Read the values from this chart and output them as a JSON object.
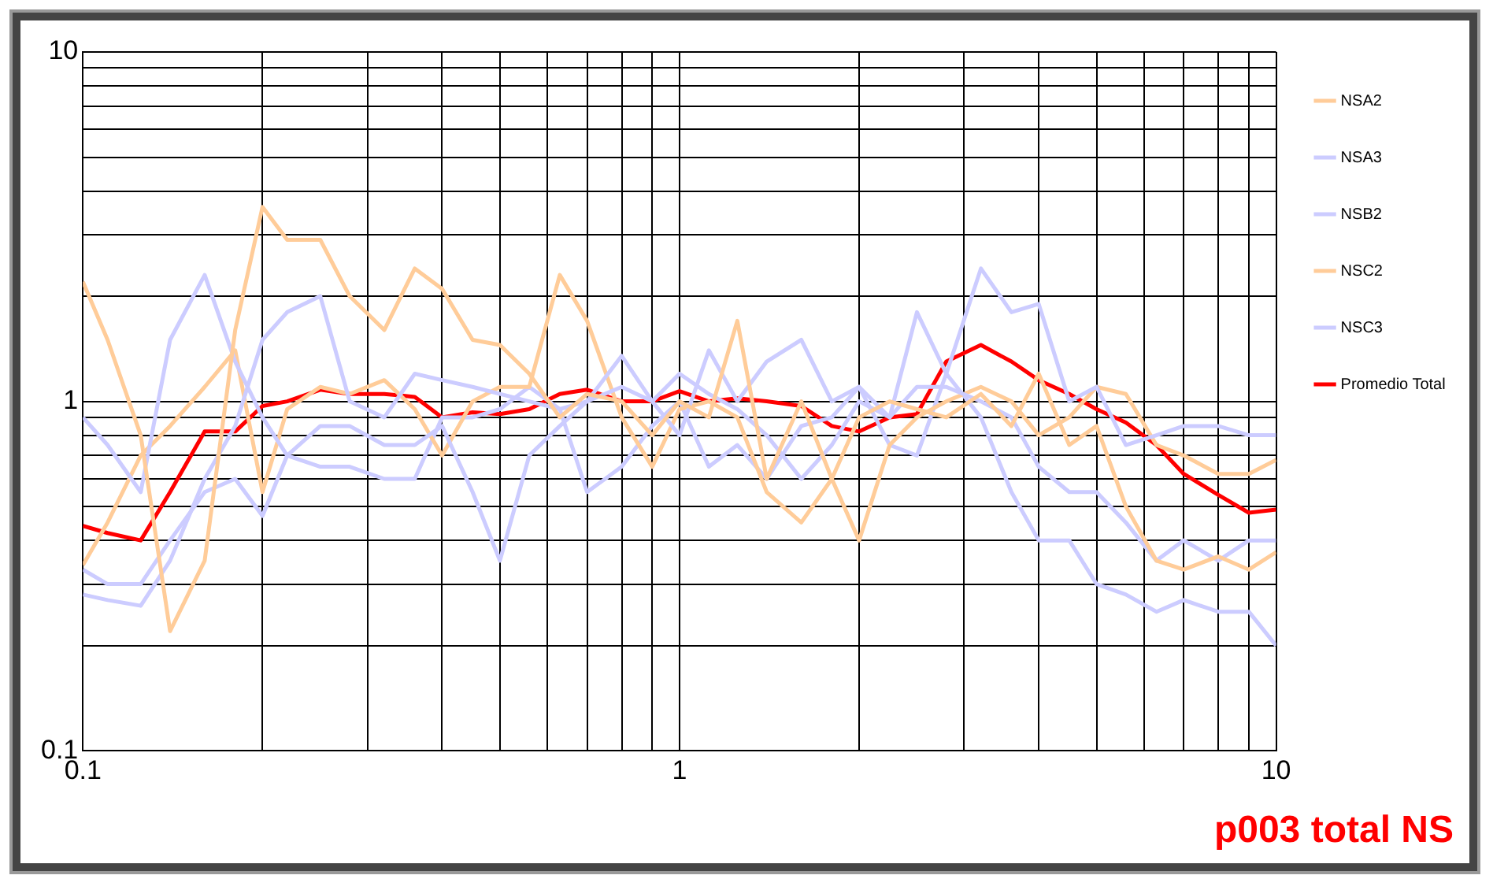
{
  "chart_data": {
    "type": "line",
    "x": [
      0.1,
      0.11,
      0.125,
      0.14,
      0.16,
      0.18,
      0.2,
      0.22,
      0.25,
      0.28,
      0.32,
      0.36,
      0.4,
      0.45,
      0.5,
      0.56,
      0.63,
      0.7,
      0.8,
      0.9,
      1,
      1.12,
      1.25,
      1.4,
      1.6,
      1.8,
      2,
      2.25,
      2.5,
      2.8,
      3.2,
      3.6,
      4,
      4.5,
      5,
      5.6,
      6.3,
      7,
      8,
      9,
      10
    ],
    "series": [
      {
        "name": "NSA2",
        "color": "#ffcc99",
        "values": [
          2.2,
          1.5,
          0.8,
          0.22,
          0.35,
          1.6,
          3.6,
          2.9,
          2.9,
          2.0,
          1.6,
          2.4,
          2.1,
          1.5,
          1.45,
          1.2,
          0.9,
          1.05,
          1.0,
          0.8,
          1.0,
          0.9,
          1.7,
          0.6,
          1.0,
          0.6,
          0.9,
          1.0,
          0.95,
          0.9,
          1.05,
          0.85,
          1.2,
          0.75,
          0.85,
          0.5,
          0.35,
          0.33,
          0.36,
          0.33,
          0.37
        ]
      },
      {
        "name": "NSA3",
        "color": "#ccccff",
        "values": [
          0.9,
          0.75,
          0.55,
          1.5,
          2.3,
          1.3,
          0.9,
          0.7,
          0.85,
          0.85,
          0.75,
          0.75,
          0.85,
          0.55,
          0.35,
          0.7,
          0.85,
          1.0,
          1.35,
          1.0,
          0.8,
          1.4,
          1.0,
          1.3,
          1.5,
          1.0,
          1.1,
          0.9,
          1.8,
          1.2,
          2.4,
          1.8,
          1.9,
          1.0,
          1.1,
          0.75,
          0.8,
          0.85,
          0.85,
          0.8,
          0.8
        ]
      },
      {
        "name": "NSB2",
        "color": "#ccccff",
        "values": [
          0.28,
          0.27,
          0.26,
          0.35,
          0.6,
          0.85,
          1.5,
          1.8,
          2.0,
          1.0,
          0.9,
          1.2,
          1.15,
          1.1,
          1.05,
          1.0,
          0.95,
          1.0,
          1.1,
          1.0,
          1.2,
          1.05,
          0.95,
          0.8,
          0.6,
          0.75,
          1.0,
          0.9,
          1.1,
          1.1,
          1.0,
          0.9,
          0.65,
          0.55,
          0.55,
          0.45,
          0.35,
          0.4,
          0.35,
          0.4,
          0.4
        ]
      },
      {
        "name": "NSC2",
        "color": "#ffcc99",
        "values": [
          0.34,
          0.45,
          0.7,
          0.85,
          1.1,
          1.4,
          0.55,
          0.95,
          1.1,
          1.05,
          1.15,
          0.95,
          0.7,
          1.0,
          1.1,
          1.1,
          2.3,
          1.7,
          0.9,
          0.65,
          0.95,
          1.0,
          0.9,
          0.55,
          0.45,
          0.6,
          0.4,
          0.75,
          0.9,
          1.0,
          1.1,
          1.0,
          0.8,
          0.9,
          1.1,
          1.05,
          0.75,
          0.7,
          0.62,
          0.62,
          0.68
        ]
      },
      {
        "name": "NSC3",
        "color": "#ccccff",
        "values": [
          0.33,
          0.3,
          0.3,
          0.4,
          0.55,
          0.6,
          0.47,
          0.7,
          0.65,
          0.65,
          0.6,
          0.6,
          0.9,
          0.9,
          0.95,
          1.1,
          0.95,
          0.55,
          0.65,
          0.85,
          1.0,
          0.65,
          0.75,
          0.6,
          0.85,
          0.9,
          1.1,
          0.75,
          0.7,
          1.2,
          0.9,
          0.55,
          0.4,
          0.4,
          0.3,
          0.28,
          0.25,
          0.27,
          0.25,
          0.25,
          0.2
        ]
      },
      {
        "name": "Promedio Total",
        "color": "#ff0000",
        "values": [
          0.44,
          0.42,
          0.4,
          0.55,
          0.82,
          0.82,
          0.97,
          1.0,
          1.08,
          1.05,
          1.05,
          1.03,
          0.9,
          0.93,
          0.92,
          0.95,
          1.05,
          1.08,
          1.0,
          1.0,
          1.07,
          1.0,
          1.02,
          1.0,
          0.97,
          0.85,
          0.82,
          0.9,
          0.92,
          1.3,
          1.45,
          1.3,
          1.15,
          1.05,
          0.95,
          0.87,
          0.75,
          0.62,
          0.54,
          0.48,
          0.49
        ]
      }
    ],
    "log": "xy",
    "xlim": [
      0.1,
      10
    ],
    "ylim": [
      0.1,
      10
    ],
    "xticks": [
      0.1,
      {
        "value": 0.2,
        "label": null
      },
      {
        "value": 0.3,
        "label": null
      },
      {
        "value": 0.4,
        "label": null
      },
      {
        "value": 0.5,
        "label": null
      },
      {
        "value": 0.6,
        "label": null
      },
      {
        "value": 0.7,
        "label": null
      },
      {
        "value": 0.8,
        "label": null
      },
      {
        "value": 0.9,
        "label": null
      },
      1,
      {
        "value": 2,
        "label": null
      },
      {
        "value": 3,
        "label": null
      },
      {
        "value": 4,
        "label": null
      },
      {
        "value": 5,
        "label": null
      },
      {
        "value": 6,
        "label": null
      },
      {
        "value": 7,
        "label": null
      },
      {
        "value": 8,
        "label": null
      },
      {
        "value": 9,
        "label": null
      },
      10
    ],
    "yticks": [
      0.1,
      {
        "value": 0.2,
        "label": null
      },
      {
        "value": 0.3,
        "label": null
      },
      {
        "value": 0.4,
        "label": null
      },
      {
        "value": 0.5,
        "label": null
      },
      {
        "value": 0.6,
        "label": null
      },
      {
        "value": 0.7,
        "label": null
      },
      {
        "value": 0.8,
        "label": null
      },
      {
        "value": 0.9,
        "label": null
      },
      1,
      {
        "value": 2,
        "label": null
      },
      {
        "value": 3,
        "label": null
      },
      {
        "value": 4,
        "label": null
      },
      {
        "value": 5,
        "label": null
      },
      {
        "value": 6,
        "label": null
      },
      {
        "value": 7,
        "label": null
      },
      {
        "value": 8,
        "label": null
      },
      {
        "value": 9,
        "label": null
      },
      10
    ],
    "grid": true,
    "legend": "right",
    "marker": "none",
    "line_style": "solid",
    "annotations": [
      "p003 total NS"
    ]
  }
}
